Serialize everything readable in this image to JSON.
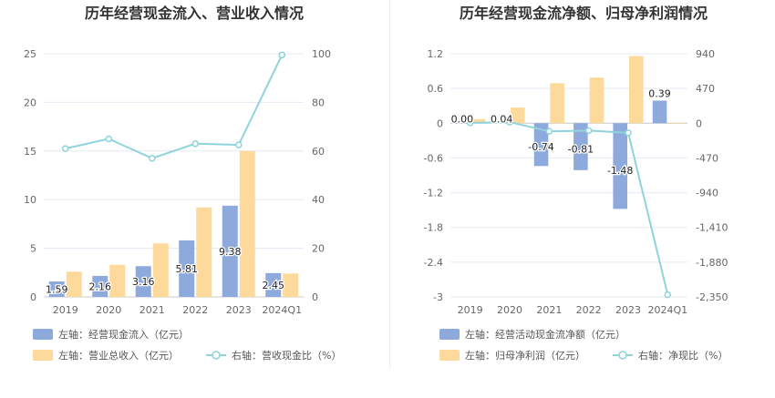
{
  "chart_data": [
    {
      "type": "bar",
      "title": "历年经营现金流入、营业收入情况",
      "categories": [
        "2019",
        "2020",
        "2021",
        "2022",
        "2023",
        "2024Q1"
      ],
      "left_axis": {
        "ylim": [
          0,
          25
        ],
        "ticks": [
          "0",
          "5",
          "10",
          "15",
          "20",
          "25"
        ]
      },
      "right_axis": {
        "ylim": [
          0,
          100
        ],
        "ticks": [
          "0",
          "20",
          "40",
          "60",
          "80",
          "100"
        ]
      },
      "series": [
        {
          "name": "左轴：经营现金流入（亿元）",
          "type": "bar",
          "axis": "left",
          "color": "#8eaadc",
          "values": [
            1.59,
            2.16,
            3.16,
            5.81,
            9.38,
            2.45
          ],
          "labels": [
            "1.59",
            "2.16",
            "3.16",
            "5.81",
            "9.38",
            "2.45"
          ]
        },
        {
          "name": "左轴：营业总收入（亿元）",
          "type": "bar",
          "axis": "left",
          "color": "#fdd99b",
          "values": [
            2.6,
            3.3,
            5.5,
            9.2,
            15.0,
            2.4
          ]
        },
        {
          "name": "右轴：营收现金比（%）",
          "type": "line",
          "axis": "right",
          "color": "#8fd3dc",
          "values": [
            61,
            65,
            57,
            63,
            62.5,
            99.5
          ]
        }
      ]
    },
    {
      "type": "bar",
      "title": "历年经营现金流净额、归母净利润情况",
      "categories": [
        "2019",
        "2020",
        "2021",
        "2022",
        "2023",
        "2024Q1"
      ],
      "left_axis": {
        "ylim": [
          -3,
          1.2
        ],
        "ticks": [
          "1.2",
          "0.6",
          "0",
          "-0.6",
          "-1.2",
          "-1.8",
          "-2.4",
          "-3"
        ]
      },
      "right_axis": {
        "ylim": [
          -2350,
          940
        ],
        "ticks": [
          "940",
          "470",
          "0",
          "-470",
          "-940",
          "-1,410",
          "-1,880",
          "-2,350"
        ]
      },
      "series": [
        {
          "name": "左轴：经营活动现金流净额（亿元）",
          "type": "bar",
          "axis": "left",
          "color": "#8eaadc",
          "values": [
            0.0,
            0.04,
            -0.74,
            -0.81,
            -1.48,
            0.39
          ],
          "labels": [
            "0.00",
            "0.04",
            "-0.74",
            "-0.81",
            "-1.48",
            "0.39"
          ]
        },
        {
          "name": "左轴：归母净利润（亿元）",
          "type": "bar",
          "axis": "left",
          "color": "#fdd99b",
          "values": [
            0.07,
            0.27,
            0.69,
            0.79,
            1.16,
            -0.01
          ]
        },
        {
          "name": "右轴：净现比（%）",
          "type": "line",
          "axis": "right",
          "color": "#8fd3dc",
          "values": [
            5,
            15,
            -110,
            -100,
            -130,
            -2320
          ]
        }
      ]
    }
  ]
}
